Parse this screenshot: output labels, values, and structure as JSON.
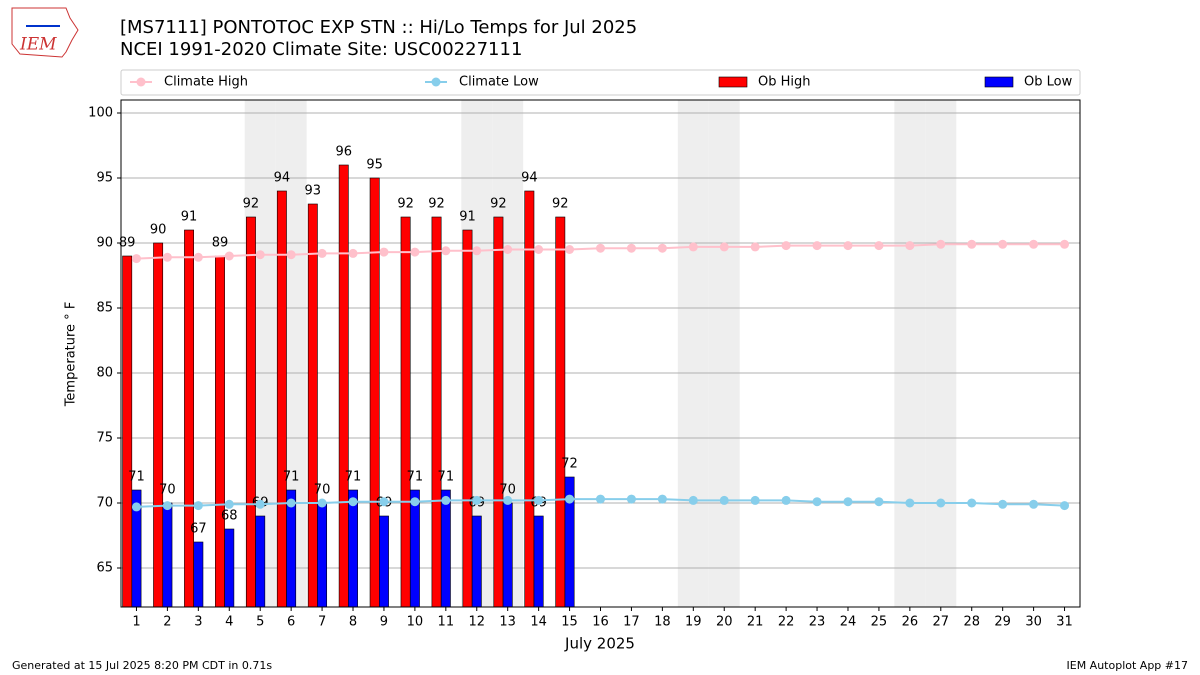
{
  "chart_data": {
    "type": "bar",
    "title": "[MS7111] PONTOTOC EXP STN :: Hi/Lo Temps for Jul 2025",
    "subtitle": "NCEI 1991-2020 Climate Site: USC00227111",
    "x_label": "July 2025",
    "y_label": "Temperature ° F",
    "logo_text": "IEM",
    "footer_left": "Generated at 15 Jul 2025 8:20 PM CDT in 0.71s",
    "footer_right": "IEM Autoplot App #17",
    "categories": [
      1,
      2,
      3,
      4,
      5,
      6,
      7,
      8,
      9,
      10,
      11,
      12,
      13,
      14,
      15,
      16,
      17,
      18,
      19,
      20,
      21,
      22,
      23,
      24,
      25,
      26,
      27,
      28,
      29,
      30,
      31
    ],
    "shaded_categories": [
      5,
      6,
      12,
      13,
      19,
      20,
      26,
      27
    ],
    "ylim": [
      62,
      101
    ],
    "yticks": [
      65,
      70,
      75,
      80,
      85,
      90,
      95,
      100
    ],
    "grid": true,
    "series": [
      {
        "name": "Climate High",
        "type": "line",
        "color": "#ffc0cb",
        "values": [
          88.8,
          88.9,
          88.9,
          89.0,
          89.1,
          89.1,
          89.2,
          89.2,
          89.3,
          89.3,
          89.4,
          89.4,
          89.5,
          89.5,
          89.5,
          89.6,
          89.6,
          89.6,
          89.7,
          89.7,
          89.7,
          89.8,
          89.8,
          89.8,
          89.8,
          89.8,
          89.9,
          89.9,
          89.9,
          89.9,
          89.9
        ]
      },
      {
        "name": "Climate Low",
        "type": "line",
        "color": "#87ceeb",
        "values": [
          69.7,
          69.8,
          69.8,
          69.9,
          69.9,
          70.0,
          70.0,
          70.1,
          70.1,
          70.1,
          70.2,
          70.2,
          70.2,
          70.2,
          70.3,
          70.3,
          70.3,
          70.3,
          70.2,
          70.2,
          70.2,
          70.2,
          70.1,
          70.1,
          70.1,
          70.0,
          70.0,
          70.0,
          69.9,
          69.9,
          69.8
        ]
      },
      {
        "name": "Ob High",
        "type": "bar",
        "color": "#ff0000",
        "values": [
          89,
          90,
          91,
          89,
          92,
          94,
          93,
          96,
          95,
          92,
          92,
          91,
          92,
          94,
          92,
          null,
          null,
          null,
          null,
          null,
          null,
          null,
          null,
          null,
          null,
          null,
          null,
          null,
          null,
          null,
          null
        ]
      },
      {
        "name": "Ob Low",
        "type": "bar",
        "color": "#0000ff",
        "values": [
          71,
          70,
          67,
          68,
          69,
          71,
          70,
          71,
          69,
          71,
          71,
          69,
          70,
          69,
          72,
          null,
          null,
          null,
          null,
          null,
          null,
          null,
          null,
          null,
          null,
          null,
          null,
          null,
          null,
          null,
          null
        ]
      }
    ]
  }
}
